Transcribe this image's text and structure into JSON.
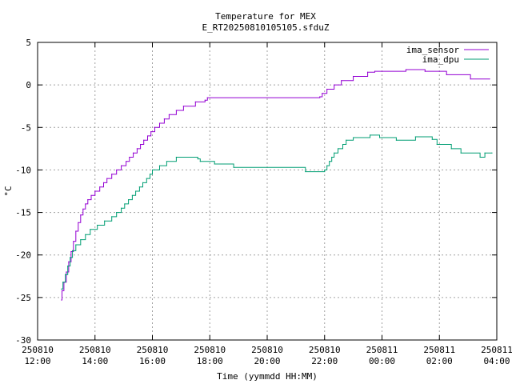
{
  "chart_data": {
    "type": "line",
    "title": "Temperature for MEX",
    "subtitle": "E_RT20250810105105.sfduZ",
    "xlabel": "Time (yymmdd HH:MM)",
    "ylabel": "°C",
    "ylim": [
      -30,
      5
    ],
    "y_ticks": [
      -30,
      -25,
      -20,
      -15,
      -10,
      -5,
      0,
      5
    ],
    "xlim": [
      "2025-08-10 12:00",
      "2025-08-11 04:00"
    ],
    "x_ticks": [
      {
        "date": "250810",
        "time": "12:00"
      },
      {
        "date": "250810",
        "time": "14:00"
      },
      {
        "date": "250810",
        "time": "16:00"
      },
      {
        "date": "250810",
        "time": "18:00"
      },
      {
        "date": "250810",
        "time": "20:00"
      },
      {
        "date": "250810",
        "time": "22:00"
      },
      {
        "date": "250811",
        "time": "00:00"
      },
      {
        "date": "250811",
        "time": "02:00"
      },
      {
        "date": "250811",
        "time": "04:00"
      }
    ],
    "grid": true,
    "legend_position": "top-right",
    "series": [
      {
        "name": "ima_sensor",
        "color": "#9400d3",
        "style": "step",
        "points": [
          [
            "2025-08-10 12:50",
            -25.3
          ],
          [
            "2025-08-10 12:51",
            -24.2
          ],
          [
            "2025-08-10 12:55",
            -23.2
          ],
          [
            "2025-08-10 13:00",
            -22.0
          ],
          [
            "2025-08-10 13:05",
            -20.8
          ],
          [
            "2025-08-10 13:10",
            -19.6
          ],
          [
            "2025-08-10 13:15",
            -18.4
          ],
          [
            "2025-08-10 13:20",
            -17.2
          ],
          [
            "2025-08-10 13:25",
            -16.2
          ],
          [
            "2025-08-10 13:30",
            -15.3
          ],
          [
            "2025-08-10 13:35",
            -14.6
          ],
          [
            "2025-08-10 13:40",
            -14.0
          ],
          [
            "2025-08-10 13:45",
            -13.5
          ],
          [
            "2025-08-10 13:52",
            -13.0
          ],
          [
            "2025-08-10 14:00",
            -12.5
          ],
          [
            "2025-08-10 14:10",
            -12.0
          ],
          [
            "2025-08-10 14:18",
            -11.5
          ],
          [
            "2025-08-10 14:25",
            -11.0
          ],
          [
            "2025-08-10 14:35",
            -10.5
          ],
          [
            "2025-08-10 14:45",
            -10.0
          ],
          [
            "2025-08-10 14:55",
            -9.5
          ],
          [
            "2025-08-10 15:05",
            -9.0
          ],
          [
            "2025-08-10 15:12",
            -8.5
          ],
          [
            "2025-08-10 15:20",
            -8.0
          ],
          [
            "2025-08-10 15:28",
            -7.5
          ],
          [
            "2025-08-10 15:35",
            -7.0
          ],
          [
            "2025-08-10 15:42",
            -6.5
          ],
          [
            "2025-08-10 15:50",
            -6.0
          ],
          [
            "2025-08-10 15:57",
            -5.5
          ],
          [
            "2025-08-10 16:05",
            -5.0
          ],
          [
            "2025-08-10 16:15",
            -4.5
          ],
          [
            "2025-08-10 16:25",
            -4.0
          ],
          [
            "2025-08-10 16:35",
            -3.5
          ],
          [
            "2025-08-10 16:50",
            -3.0
          ],
          [
            "2025-08-10 17:05",
            -2.5
          ],
          [
            "2025-08-10 17:30",
            -2.0
          ],
          [
            "2025-08-10 17:50",
            -1.8
          ],
          [
            "2025-08-10 17:55",
            -1.5
          ],
          [
            "2025-08-10 21:50",
            -1.4
          ],
          [
            "2025-08-10 21:55",
            -1.0
          ],
          [
            "2025-08-10 22:05",
            -0.5
          ],
          [
            "2025-08-10 22:20",
            0.0
          ],
          [
            "2025-08-10 22:35",
            0.5
          ],
          [
            "2025-08-10 23:00",
            1.0
          ],
          [
            "2025-08-10 23:30",
            1.5
          ],
          [
            "2025-08-10 23:45",
            1.6
          ],
          [
            "2025-08-11 00:50",
            1.8
          ],
          [
            "2025-08-11 01:30",
            1.6
          ],
          [
            "2025-08-11 02:15",
            1.2
          ],
          [
            "2025-08-11 03:05",
            0.7
          ],
          [
            "2025-08-11 03:45",
            0.7
          ]
        ]
      },
      {
        "name": "ima_dpu",
        "color": "#009e73",
        "style": "step",
        "points": [
          [
            "2025-08-10 12:50",
            -24.0
          ],
          [
            "2025-08-10 12:53",
            -23.2
          ],
          [
            "2025-08-10 12:58",
            -22.3
          ],
          [
            "2025-08-10 13:03",
            -21.3
          ],
          [
            "2025-08-10 13:08",
            -20.3
          ],
          [
            "2025-08-10 13:13",
            -19.5
          ],
          [
            "2025-08-10 13:20",
            -18.8
          ],
          [
            "2025-08-10 13:30",
            -18.2
          ],
          [
            "2025-08-10 13:40",
            -17.6
          ],
          [
            "2025-08-10 13:50",
            -17.0
          ],
          [
            "2025-08-10 14:05",
            -16.5
          ],
          [
            "2025-08-10 14:20",
            -16.0
          ],
          [
            "2025-08-10 14:35",
            -15.5
          ],
          [
            "2025-08-10 14:45",
            -15.0
          ],
          [
            "2025-08-10 14:55",
            -14.5
          ],
          [
            "2025-08-10 15:02",
            -14.0
          ],
          [
            "2025-08-10 15:10",
            -13.5
          ],
          [
            "2025-08-10 15:18",
            -13.0
          ],
          [
            "2025-08-10 15:25",
            -12.5
          ],
          [
            "2025-08-10 15:33",
            -12.0
          ],
          [
            "2025-08-10 15:40",
            -11.5
          ],
          [
            "2025-08-10 15:48",
            -11.0
          ],
          [
            "2025-08-10 15:55",
            -10.5
          ],
          [
            "2025-08-10 16:00",
            -10.0
          ],
          [
            "2025-08-10 16:15",
            -9.5
          ],
          [
            "2025-08-10 16:30",
            -9.0
          ],
          [
            "2025-08-10 16:50",
            -8.5
          ],
          [
            "2025-08-10 17:35",
            -8.7
          ],
          [
            "2025-08-10 17:40",
            -9.0
          ],
          [
            "2025-08-10 18:10",
            -9.3
          ],
          [
            "2025-08-10 18:50",
            -9.7
          ],
          [
            "2025-08-10 21:20",
            -10.2
          ],
          [
            "2025-08-10 22:00",
            -10.0
          ],
          [
            "2025-08-10 22:05",
            -9.5
          ],
          [
            "2025-08-10 22:10",
            -9.0
          ],
          [
            "2025-08-10 22:15",
            -8.5
          ],
          [
            "2025-08-10 22:20",
            -8.0
          ],
          [
            "2025-08-10 22:28",
            -7.5
          ],
          [
            "2025-08-10 22:38",
            -7.0
          ],
          [
            "2025-08-10 22:45",
            -6.5
          ],
          [
            "2025-08-10 23:00",
            -6.2
          ],
          [
            "2025-08-10 23:35",
            -5.9
          ],
          [
            "2025-08-10 23:55",
            -6.2
          ],
          [
            "2025-08-11 00:30",
            -6.5
          ],
          [
            "2025-08-11 01:10",
            -6.1
          ],
          [
            "2025-08-11 01:45",
            -6.4
          ],
          [
            "2025-08-11 01:55",
            -7.0
          ],
          [
            "2025-08-11 02:25",
            -7.5
          ],
          [
            "2025-08-11 02:45",
            -8.0
          ],
          [
            "2025-08-11 03:25",
            -8.5
          ],
          [
            "2025-08-11 03:35",
            -8.0
          ],
          [
            "2025-08-11 03:50",
            -8.0
          ]
        ]
      }
    ]
  }
}
